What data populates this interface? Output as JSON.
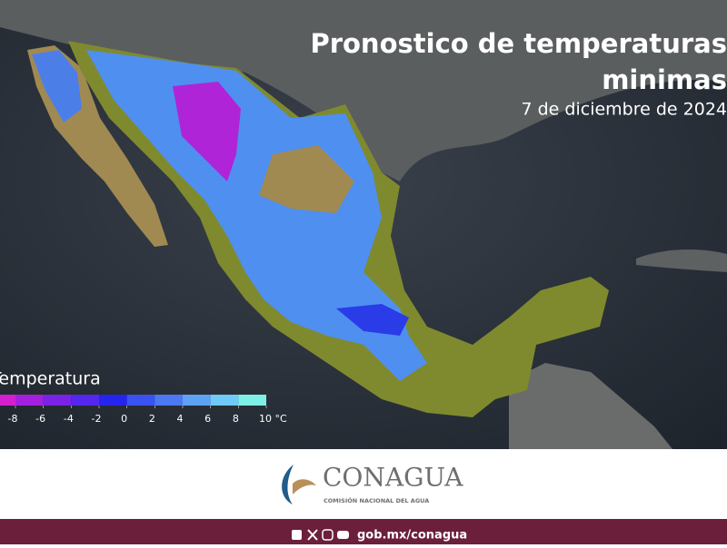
{
  "header": {
    "title_line1": "Pronostico de temperaturas",
    "title_line2": "minimas",
    "date": "7 de diciembre de 2024"
  },
  "legend": {
    "title": "Temperatura",
    "ticks": [
      -8,
      -6,
      -4,
      -2,
      0,
      2,
      4,
      6,
      8,
      {
        "value": 10,
        "label": "10 °C"
      }
    ],
    "colors": [
      "#d41fd0",
      "#a321de",
      "#7a22e6",
      "#5426ee",
      "#2424ee",
      "#3a52f0",
      "#4c78f2",
      "#5ea2f5",
      "#6fcaf7",
      "#7ef0e6"
    ]
  },
  "footer": {
    "brand": "CONAGUA",
    "subtitle": "COMISIÓN NACIONAL DEL AGUA",
    "link": "gob.mx/conagua"
  }
}
